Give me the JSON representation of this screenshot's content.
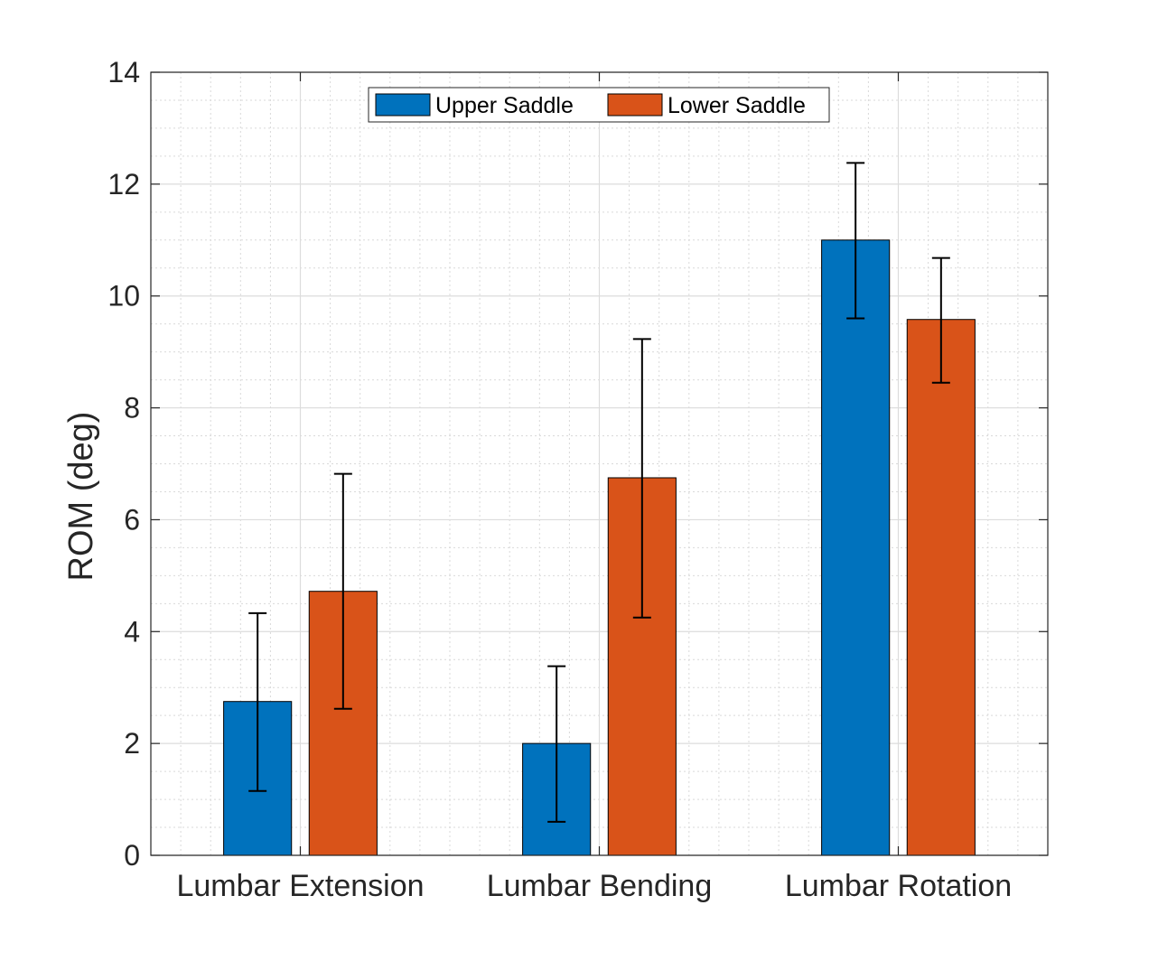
{
  "chart_data": {
    "type": "bar",
    "categories": [
      "Lumbar Extension",
      "Lumbar Bending",
      "Lumbar Rotation"
    ],
    "series": [
      {
        "name": "Upper Saddle",
        "color": "#0072BD",
        "values": [
          2.75,
          2.0,
          11.0
        ],
        "error_low": [
          1.15,
          0.6,
          9.6
        ],
        "error_high": [
          4.33,
          3.38,
          12.38
        ]
      },
      {
        "name": "Lower Saddle",
        "color": "#D95319",
        "values": [
          4.72,
          6.75,
          9.58
        ],
        "error_low": [
          2.62,
          4.25,
          8.45
        ],
        "error_high": [
          6.82,
          9.23,
          10.68
        ]
      }
    ],
    "ylabel": "ROM (deg)",
    "xlabel": "",
    "ylim": [
      0,
      14
    ],
    "yticks": [
      "0",
      "2",
      "4",
      "6",
      "8",
      "10",
      "12",
      "14"
    ],
    "grid": true,
    "minor_grid": true,
    "legend_position": "top-center",
    "legend_orientation": "horizontal"
  }
}
